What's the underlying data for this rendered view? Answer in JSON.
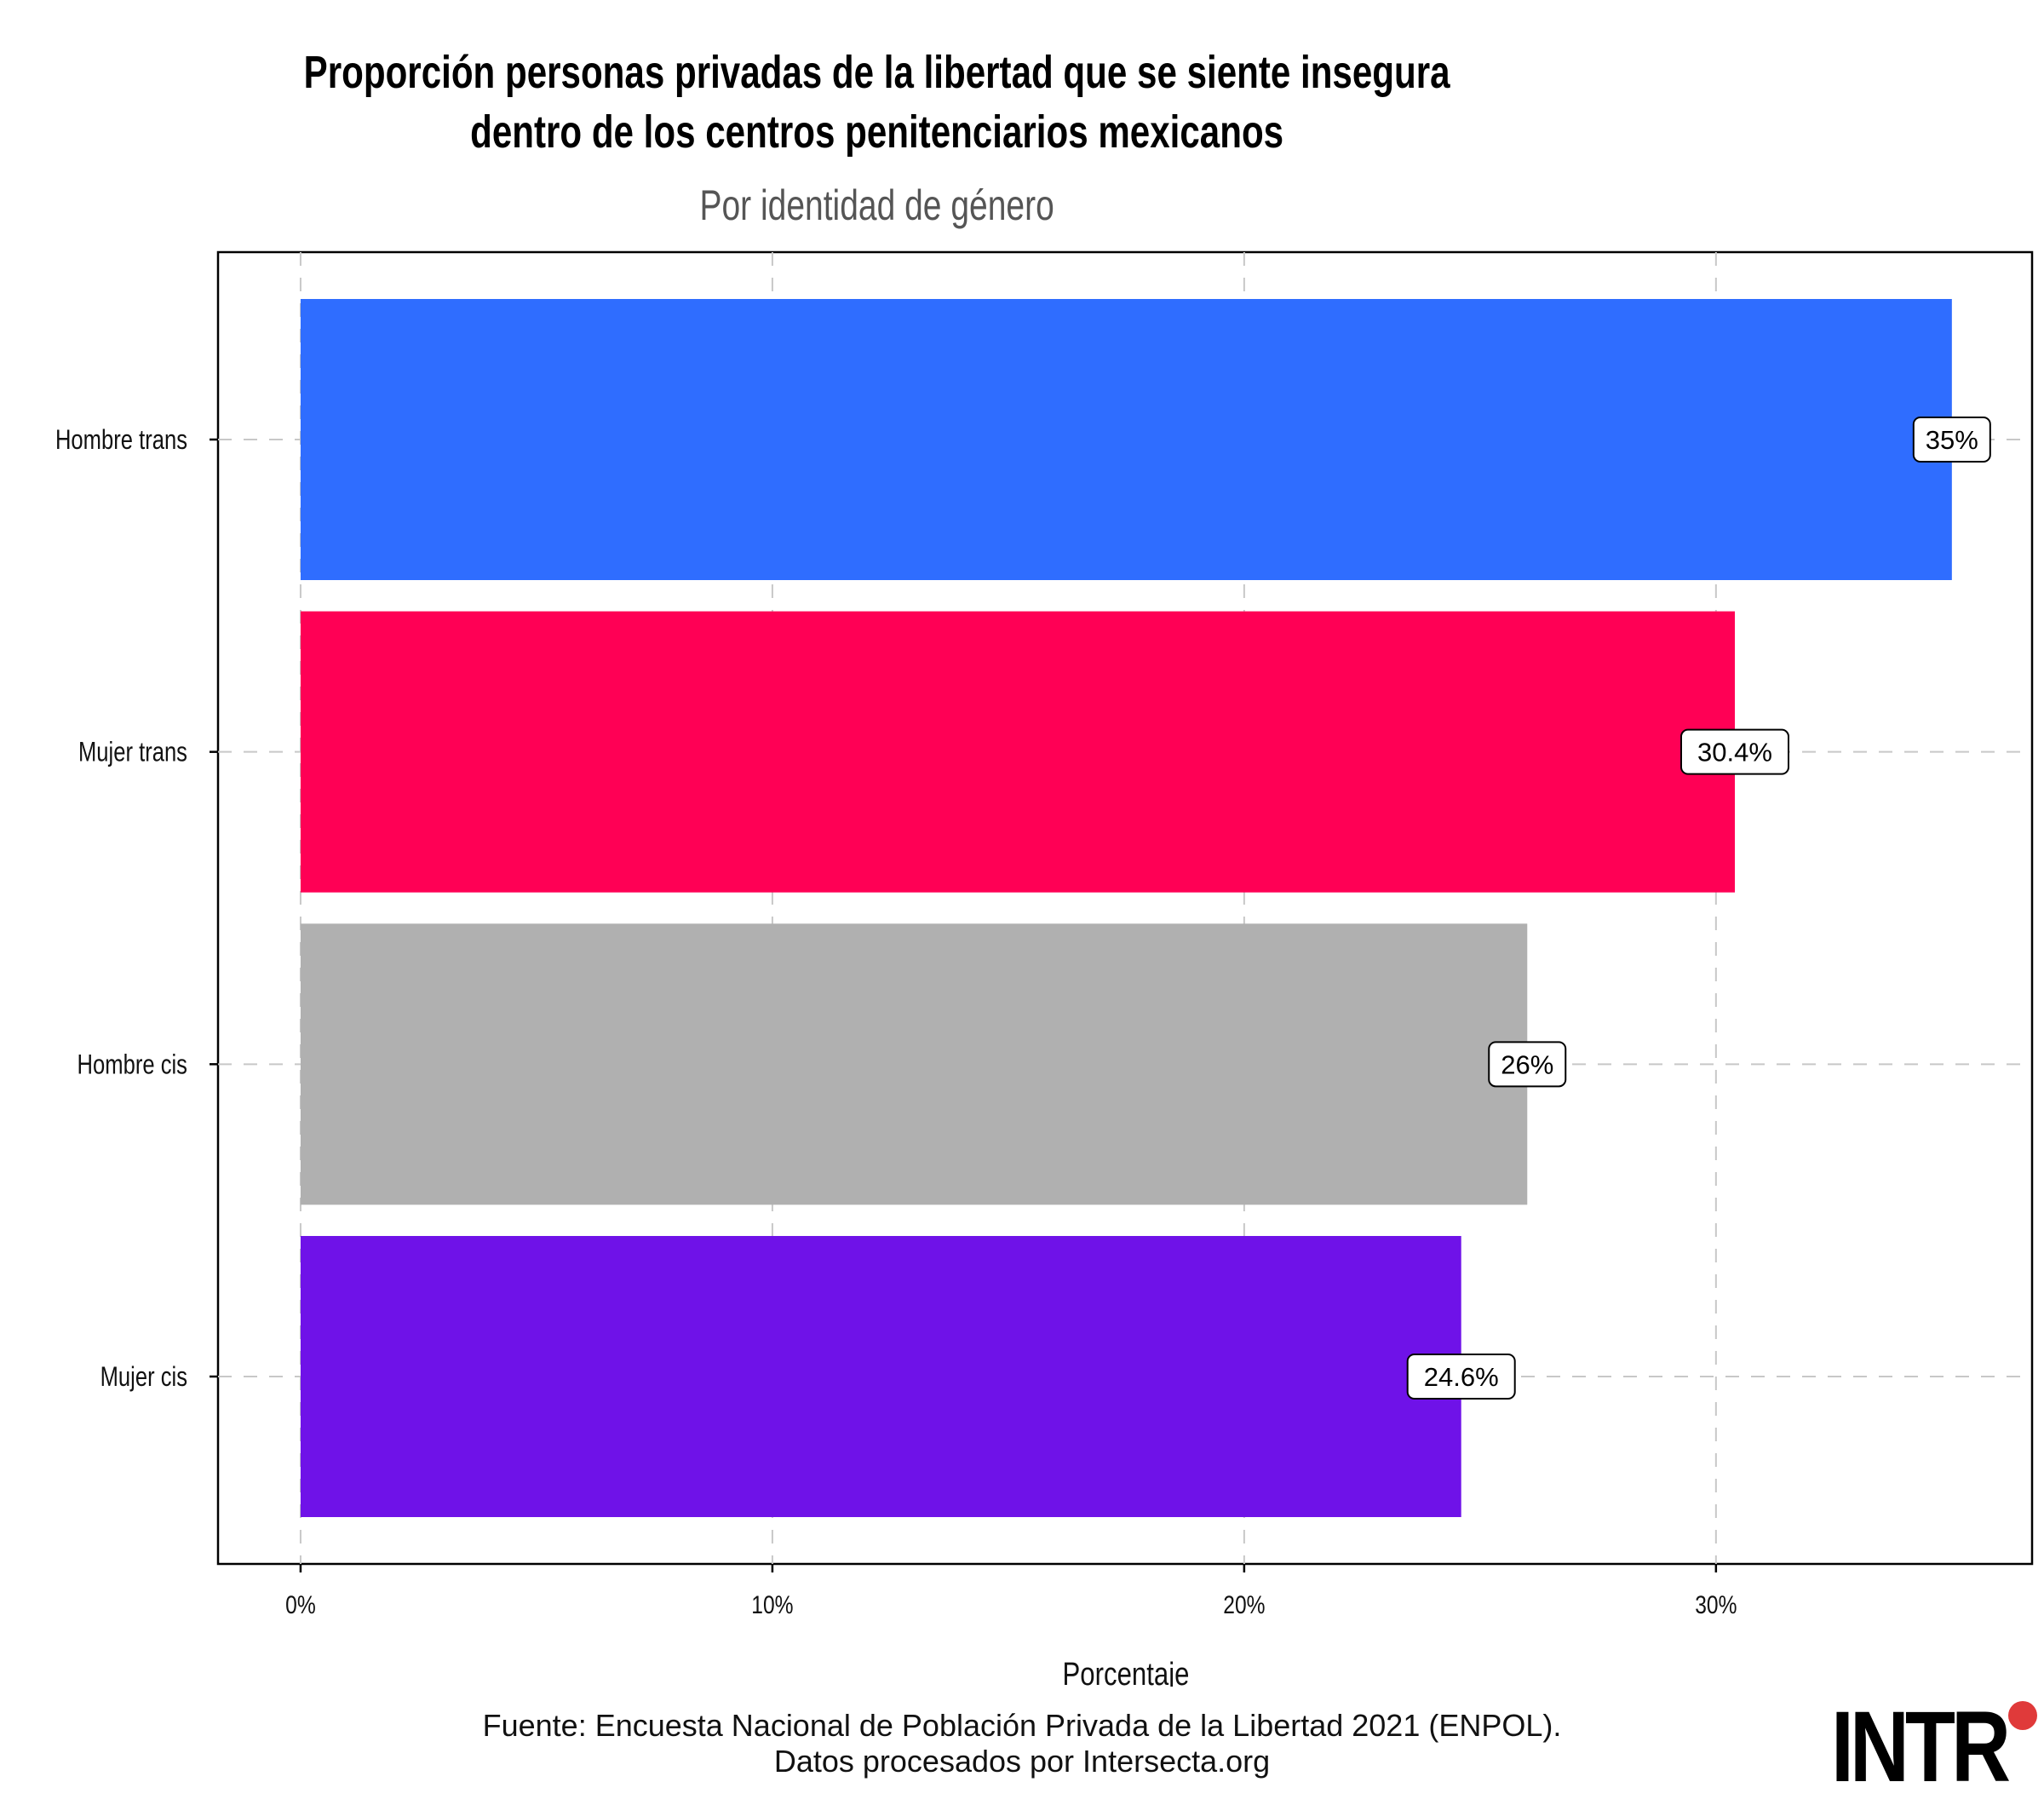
{
  "chart_data": {
    "type": "bar",
    "orientation": "horizontal",
    "title_lines": [
      "Proporción personas privadas de la libertad que se siente insegura",
      "dentro de los centros penitenciarios mexicanos"
    ],
    "subtitle": "Por identidad de género",
    "categories": [
      "Hombre trans",
      "Mujer trans",
      "Hombre cis",
      "Mujer cis"
    ],
    "values": [
      35,
      30.4,
      26,
      24.6
    ],
    "value_labels": [
      "35%",
      "30.4%",
      "26%",
      "24.6%"
    ],
    "colors": [
      "#2f6dff",
      "#ff0055",
      "#b0b0b0",
      "#6f12e8"
    ],
    "xlabel": "Porcentaje",
    "ylabel": "",
    "xlim": [
      -1.75,
      36.7
    ],
    "xticks": [
      0,
      10,
      20,
      30
    ],
    "xtick_labels": [
      "0%",
      "10%",
      "20%",
      "30%"
    ],
    "grid": true,
    "legend": "none"
  },
  "footer": {
    "source": "Fuente: Encuesta Nacional de Población Privada de la Libertad 2021 (ENPOL).",
    "credit": "Datos procesados por Intersecta.org"
  },
  "logo": {
    "text": "INTR"
  }
}
